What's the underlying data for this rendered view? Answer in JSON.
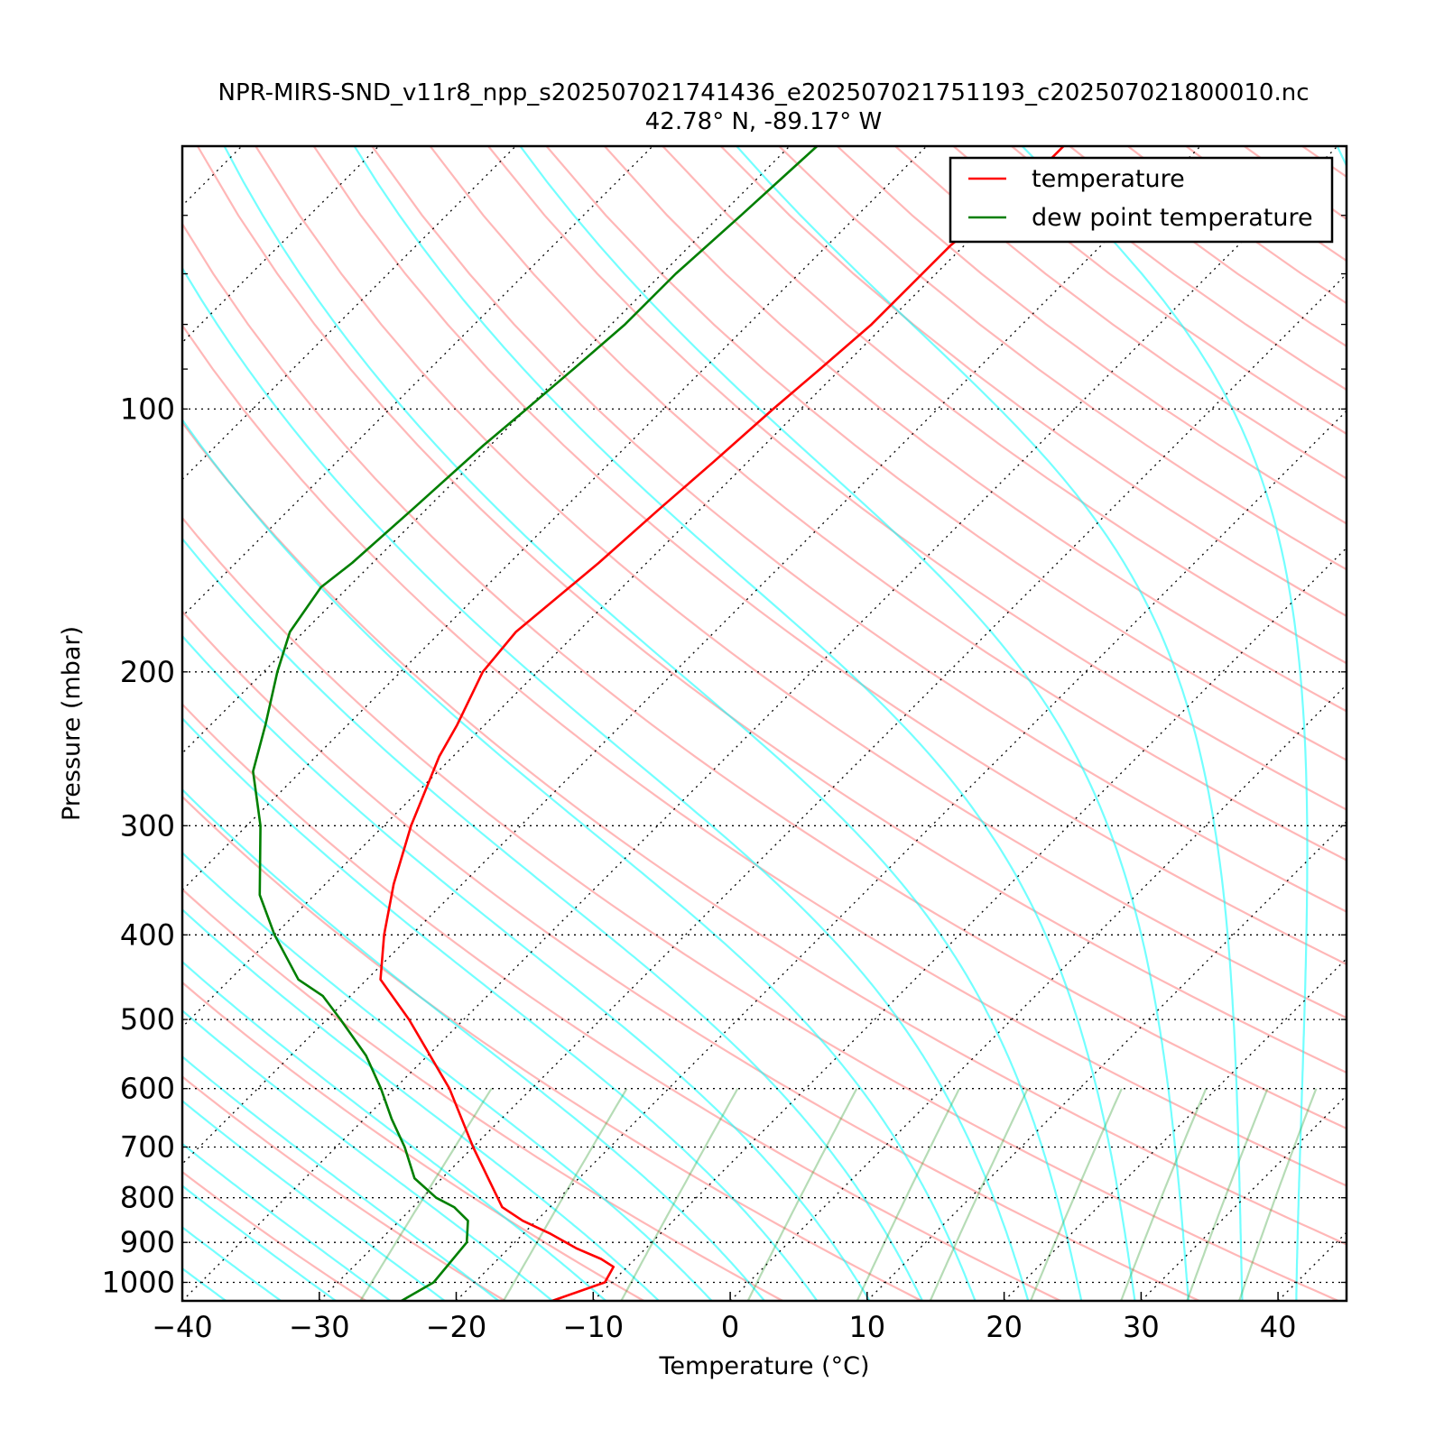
{
  "chart_data": {
    "type": "line",
    "title_lines": [
      "NPR-MIRS-SND_v11r8_npp_s202507021741436_e202507021751193_c202507021800010.nc",
      "42.78° N, -89.17° W"
    ],
    "xlabel": "Temperature (°C)",
    "ylabel": "Pressure (mbar)",
    "xlim": [
      -40,
      45
    ],
    "ylim": [
      1050,
      50
    ],
    "y_scale": "log",
    "skew_deg": 45,
    "x_ticks": [
      -40,
      -30,
      -20,
      -10,
      0,
      10,
      20,
      30,
      40
    ],
    "x_tick_labels": [
      "−40",
      "−30",
      "−20",
      "−10",
      "0",
      "10",
      "20",
      "30",
      "40"
    ],
    "y_ticks": [
      100,
      200,
      300,
      400,
      500,
      600,
      700,
      800,
      900,
      1000
    ],
    "y_tick_labels": [
      "100",
      "200",
      "300",
      "400",
      "500",
      "600",
      "700",
      "800",
      "900",
      "1000"
    ],
    "grid": "dotted horizontal isobars and skewed isotherms",
    "legend_position": "top-right",
    "series": [
      {
        "name": "temperature",
        "color": "#ff0000",
        "pressure": [
          1050,
          1000,
          960,
          940,
          915,
          880,
          850,
          820,
          700,
          600,
          500,
          450,
          400,
          350,
          300,
          250,
          230,
          200,
          180,
          150,
          130,
          115,
          100,
          90,
          80,
          70,
          65,
          60,
          55,
          50
        ],
        "temperature": [
          -13,
          -10.5,
          -11,
          -12.5,
          -15,
          -18,
          -21,
          -23.5,
          -30,
          -36,
          -44,
          -49,
          -52,
          -55,
          -58,
          -61,
          -62,
          -64,
          -64.5,
          -63.5,
          -63,
          -62.5,
          -62,
          -61.5,
          -61,
          -61,
          -61,
          -60.5,
          -60,
          -60
        ]
      },
      {
        "name": "dew point temperature",
        "color": "#007f00",
        "pressure": [
          1050,
          1000,
          900,
          850,
          820,
          800,
          760,
          700,
          650,
          600,
          550,
          500,
          470,
          450,
          400,
          360,
          300,
          260,
          230,
          200,
          180,
          160,
          150,
          130,
          110,
          100,
          90,
          80,
          70,
          60,
          50
        ],
        "temperature": [
          -24,
          -23,
          -23.5,
          -25,
          -27,
          -29,
          -32,
          -35,
          -38,
          -41,
          -44.5,
          -49,
          -52,
          -55,
          -60,
          -64,
          -69,
          -73.5,
          -76,
          -79,
          -81,
          -82,
          -81.5,
          -81,
          -80.5,
          -80,
          -79.5,
          -79,
          -79,
          -78.5,
          -78
        ]
      }
    ]
  }
}
